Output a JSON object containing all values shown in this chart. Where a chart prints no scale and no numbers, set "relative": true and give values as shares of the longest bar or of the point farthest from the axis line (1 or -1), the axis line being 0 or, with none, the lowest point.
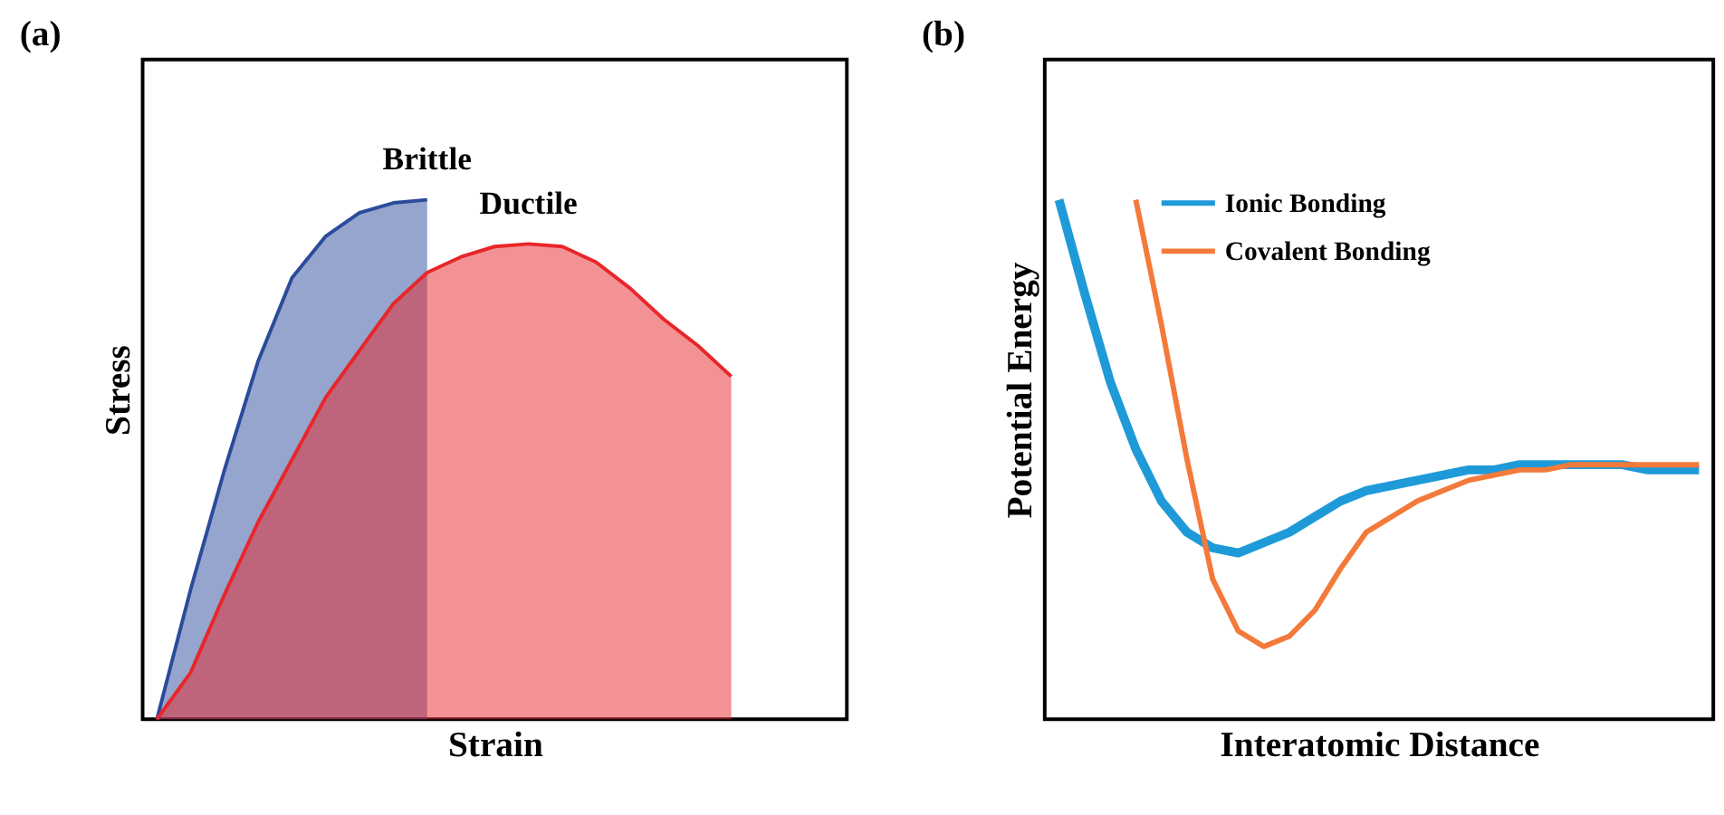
{
  "chart_data": [
    {
      "type": "area",
      "title": "(a)",
      "xlabel": "Strain",
      "ylabel": "Stress",
      "relative": true,
      "legend": false,
      "grid": false,
      "categories": [
        null,
        null,
        null,
        null,
        null,
        null,
        null,
        null,
        null,
        null,
        null,
        null,
        null,
        null,
        null,
        null,
        null,
        null,
        null,
        null,
        null
      ],
      "series": [
        {
          "name": "Brittle",
          "color": "#2b4b9b",
          "values": [
            0,
            0.25,
            0.48,
            0.69,
            0.85,
            0.93,
            0.975,
            0.994,
            1,
            null,
            null,
            null,
            null,
            null,
            null,
            null,
            null,
            null,
            null,
            null,
            null
          ]
        },
        {
          "name": "Ductile",
          "color": "#e8262a",
          "values": [
            0,
            0.09,
            0.24,
            0.38,
            0.5,
            0.62,
            0.71,
            0.8,
            0.86,
            0.89,
            0.91,
            0.915,
            0.91,
            0.88,
            0.83,
            0.77,
            0.72,
            0.66,
            null,
            null,
            null
          ]
        }
      ]
    },
    {
      "type": "line",
      "title": "(b)",
      "xlabel": "Interatomic Distance",
      "ylabel": "Potential Energy",
      "relative": true,
      "legend": "top left",
      "grid": false,
      "categories": [
        null,
        null,
        null,
        null,
        null,
        null,
        null,
        null,
        null,
        null,
        null,
        null,
        null,
        null,
        null,
        null,
        null,
        null,
        null,
        null,
        null,
        null,
        null,
        null,
        null,
        null
      ],
      "series": [
        {
          "name": "Ionic Bonding",
          "color": "#1f9ad8",
          "values": [
            1.0,
            0.82,
            0.65,
            0.52,
            0.42,
            0.36,
            0.33,
            0.32,
            0.34,
            0.36,
            0.39,
            0.42,
            0.44,
            0.45,
            0.46,
            0.47,
            0.48,
            0.48,
            0.49,
            0.49,
            0.49,
            0.49,
            0.49,
            0.48,
            0.48,
            0.48
          ]
        },
        {
          "name": "Covalent Bonding",
          "color": "#f37a3a",
          "values": [
            null,
            null,
            null,
            1.0,
            0.76,
            0.5,
            0.27,
            0.17,
            0.14,
            0.16,
            0.21,
            0.29,
            0.36,
            0.39,
            0.42,
            0.44,
            0.46,
            0.47,
            0.48,
            0.48,
            0.49,
            0.49,
            0.49,
            0.49,
            0.49,
            0.49
          ]
        }
      ]
    }
  ]
}
